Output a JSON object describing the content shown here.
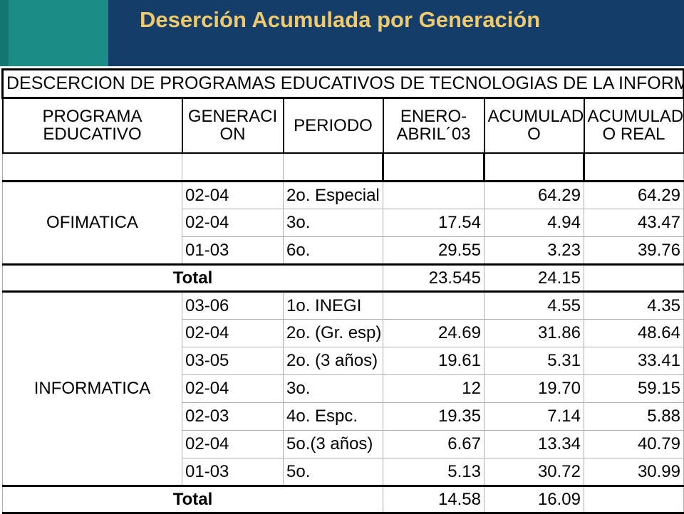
{
  "header": {
    "title": "Deserción Acumulada por Generación"
  },
  "table": {
    "caption": "DESCERCION DE PROGRAMAS EDUCATIVOS DE TECNOLOGIAS DE LA INFORMACION",
    "columns": [
      "PROGRAMA EDUCATIVO",
      "GENERACI ON",
      "PERIODO",
      "ENERO- ABRIL´03",
      "ACUMULAD O",
      "ACUMULAD O REAL"
    ],
    "groups": [
      {
        "program": "OFIMATICA",
        "rows": [
          {
            "gen": "02-04",
            "periodo": "2o. Especial",
            "enero": "",
            "acumulado": "64.29",
            "real": "64.29"
          },
          {
            "gen": "02-04",
            "periodo": "3o.",
            "enero": "17.54",
            "acumulado": "4.94",
            "real": "43.47"
          },
          {
            "gen": "01-03",
            "periodo": "6o.",
            "enero": "29.55",
            "acumulado": "3.23",
            "real": "39.76"
          }
        ],
        "total": {
          "label": "Total",
          "enero": "23.545",
          "acumulado": "24.15",
          "real": ""
        }
      },
      {
        "program": "INFORMATICA",
        "rows": [
          {
            "gen": "03-06",
            "periodo": "1o. INEGI",
            "enero": "",
            "acumulado": "4.55",
            "real": "4.35"
          },
          {
            "gen": "02-04",
            "periodo": "2o. (Gr. esp)",
            "enero": "24.69",
            "acumulado": "31.86",
            "real": "48.64"
          },
          {
            "gen": "03-05",
            "periodo": "2o. (3 años)",
            "enero": "19.61",
            "acumulado": "5.31",
            "real": "33.41"
          },
          {
            "gen": "02-04",
            "periodo": "3o.",
            "enero": "12",
            "acumulado": "19.70",
            "real": "59.15"
          },
          {
            "gen": "02-03",
            "periodo": "4o. Espc.",
            "enero": "19.35",
            "acumulado": "7.14",
            "real": "5.88"
          },
          {
            "gen": "02-04",
            "periodo": "5o.(3 años)",
            "enero": "6.67",
            "acumulado": "13.34",
            "real": "40.79"
          },
          {
            "gen": "01-03",
            "periodo": "5o.",
            "enero": "5.13",
            "acumulado": "30.72",
            "real": "30.99"
          }
        ],
        "total": {
          "label": "Total",
          "enero": "14.58",
          "acumulado": "16.09",
          "real": ""
        }
      }
    ]
  }
}
